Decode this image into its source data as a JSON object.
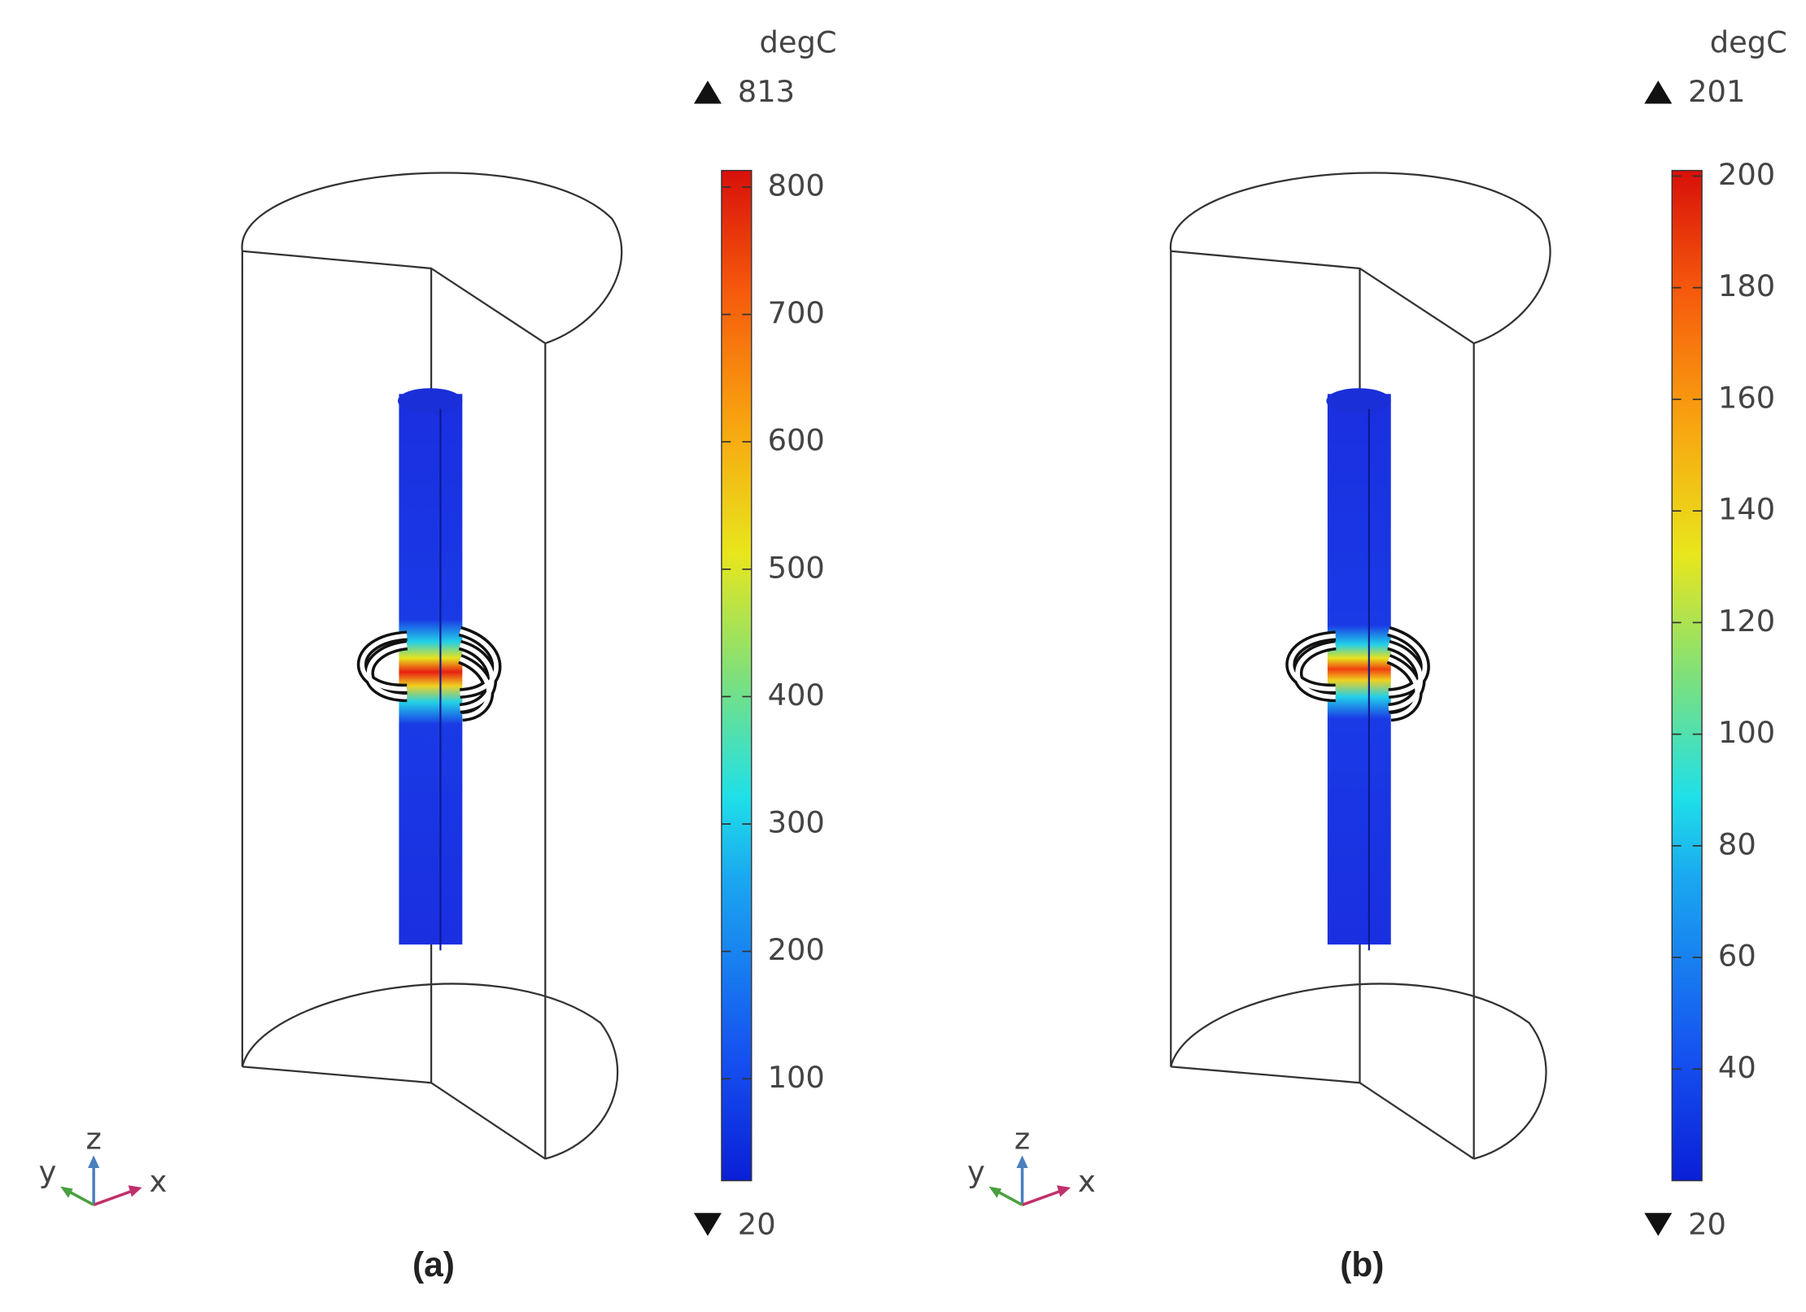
{
  "panels": [
    {
      "label": "(a)",
      "unit": "degC",
      "max": 813,
      "min": 20,
      "ticks": [
        100,
        200,
        300,
        400,
        500,
        600,
        700,
        800
      ],
      "axes": [
        "x",
        "y",
        "z"
      ]
    },
    {
      "label": "(b)",
      "unit": "degC",
      "max": 201,
      "min": 20,
      "ticks": [
        40,
        60,
        80,
        100,
        120,
        140,
        160,
        180,
        200
      ],
      "axes": [
        "x",
        "y",
        "z"
      ]
    }
  ]
}
